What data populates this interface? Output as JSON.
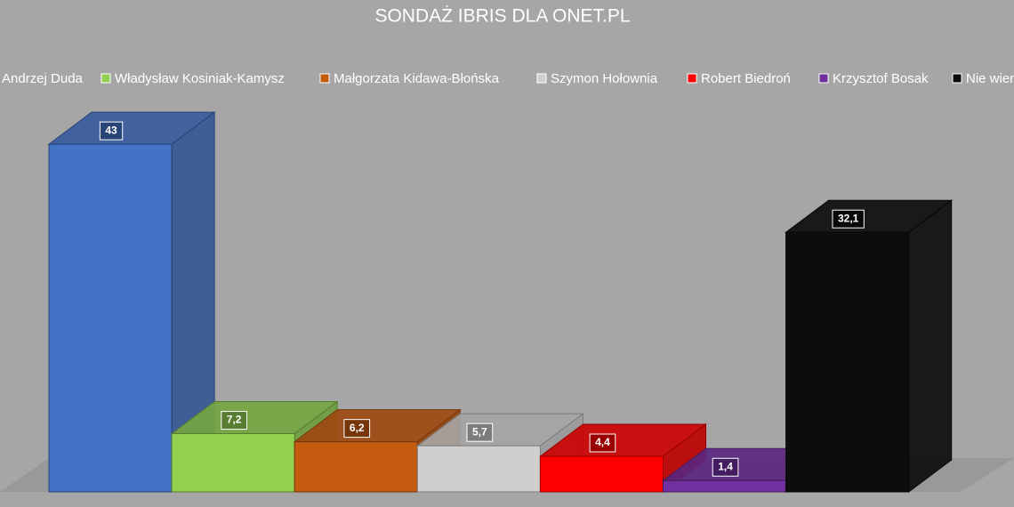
{
  "chart_data": {
    "type": "bar3d",
    "title": "SONDAŻ IBRIS DLA ONET.PL",
    "categories": [
      "Andrzej Duda",
      "Władysław Kosiniak-Kamysz",
      "Małgorzata Kidawa-Błońska",
      "Szymon Hołownia",
      "Robert Biedroń",
      "Krzysztof Bosak",
      "Nie wiem"
    ],
    "values": [
      43,
      7.2,
      6.2,
      5.7,
      4.4,
      1.4,
      32.1
    ],
    "value_labels": [
      "43",
      "7,2",
      "6,2",
      "5,7",
      "4,4",
      "1,4",
      "32,1"
    ],
    "colors": [
      "#4472c4",
      "#92d050",
      "#c55a11",
      "#d0cece",
      "#ff0000",
      "#7030a0",
      "#0d0d0d"
    ],
    "legend": "top"
  }
}
